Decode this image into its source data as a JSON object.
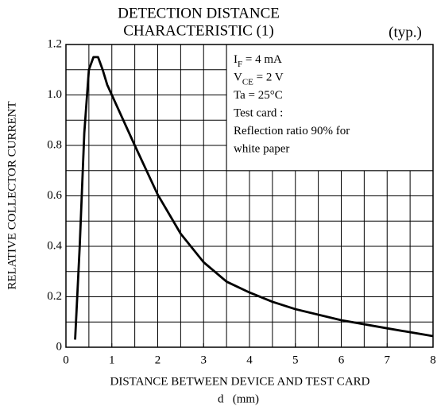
{
  "chart_data": {
    "type": "line",
    "title": [
      "DETECTION DISTANCE",
      "CHARACTERISTIC (1)"
    ],
    "note": "(typ.)",
    "x_label": "DISTANCE BETWEEN DEVICE AND TEST CARD",
    "x_unit": "d   (mm)",
    "y_label": "RELATIVE COLLECTOR CURRENT",
    "annotations": [
      {
        "text": "I",
        "sub": "F",
        "tail": " = 4 mA"
      },
      {
        "text": "V",
        "sub": "CE",
        "tail": " = 2 V"
      },
      {
        "text": "Ta = 25°C"
      },
      {
        "text": "Test card :"
      },
      {
        "text": "Reflection ratio 90% for"
      },
      {
        "text": "white paper"
      }
    ],
    "x": [
      0.2,
      0.3,
      0.4,
      0.5,
      0.6,
      0.7,
      0.8,
      0.9,
      1.0,
      1.5,
      2,
      2.5,
      3,
      3.5,
      4,
      4.5,
      5,
      6,
      7,
      8
    ],
    "series": [
      {
        "color": "#000000",
        "values": [
          0.03,
          0.4,
          0.85,
          1.1,
          1.15,
          1.15,
          1.1,
          1.04,
          1.0,
          0.8,
          0.605,
          0.45,
          0.337,
          0.26,
          0.217,
          0.18,
          0.151,
          0.107,
          0.075,
          0.044
        ]
      }
    ],
    "xlim": [
      0,
      8
    ],
    "ylim": [
      0,
      1.2
    ],
    "xticks": [
      0,
      1,
      2,
      3,
      4,
      5,
      6,
      7,
      8
    ],
    "yticks": [
      0,
      0.2,
      0.4,
      0.6,
      0.8,
      {
        "value": 1,
        "label": "1.0"
      },
      1.2
    ],
    "xgrid": [
      0.5,
      1,
      1.5,
      2,
      2.5,
      3,
      3.5,
      4,
      4.5,
      5,
      5.5,
      6,
      6.5,
      7,
      7.5
    ],
    "ygrid": [
      0.1,
      0.2,
      0.3,
      0.4,
      0.5,
      0.6,
      0.7,
      0.8,
      0.9,
      1,
      1.1
    ],
    "grid": true
  }
}
